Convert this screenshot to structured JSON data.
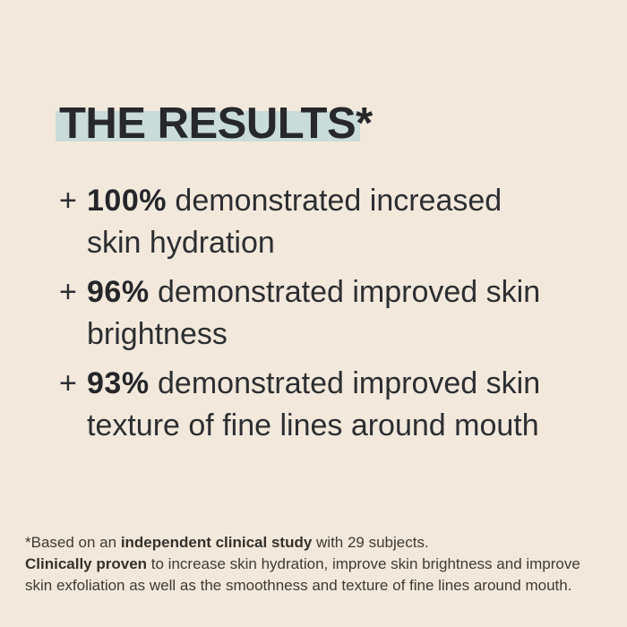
{
  "page": {
    "background_color": "#f2e9dc",
    "highlight_color": "#cadcda",
    "title_color": "#26282b",
    "body_text_color": "#2c2e31"
  },
  "title": {
    "text": "THE RESULTS*"
  },
  "results": {
    "marker": "+",
    "items": [
      {
        "percent": "100%",
        "line1": "demonstrated increased",
        "line2": "skin hydration"
      },
      {
        "percent": "96%",
        "line1": "demonstrated improved skin",
        "line2": "brightness"
      },
      {
        "percent": "93%",
        "line1": "demonstrated improved skin",
        "line2": "texture of fine lines around mouth"
      }
    ]
  },
  "footnote": {
    "p1": [
      {
        "text": "*Based on an "
      },
      {
        "text": "independent clinical study",
        "bold": true
      },
      {
        "text": " with 29 subjects."
      }
    ],
    "p2": [
      {
        "text": "Clinically proven",
        "bold": true
      },
      {
        "text": " to increase skin hydration, improve skin brightness and improve skin exfoliation as well as the smoothness and texture of fine lines around mouth."
      }
    ]
  }
}
